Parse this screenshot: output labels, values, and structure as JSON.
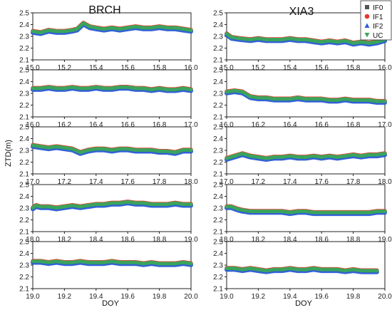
{
  "chart_data": {
    "type": "scatter",
    "ylabel": "ZTD(m)",
    "xlabel": "DOY",
    "column_titles": [
      "BRCH",
      "XIA3"
    ],
    "legend": {
      "placement": "top-right",
      "entries": [
        {
          "name": "IF0",
          "color": "#555555",
          "marker": "square"
        },
        {
          "name": "IF1",
          "color": "#e8372c",
          "marker": "circle"
        },
        {
          "name": "IF2",
          "color": "#2a5bd7",
          "marker": "triangle-up"
        },
        {
          "name": "UC",
          "color": "#3aa85a",
          "marker": "triangle-down"
        }
      ]
    },
    "ylim": [
      2.1,
      2.5
    ],
    "yticks": [
      "2.1",
      "2.2",
      "2.3",
      "2.4",
      "2.5"
    ],
    "grid": false,
    "panels": [
      {
        "station": "BRCH",
        "row": 0,
        "xlim": [
          15.0,
          16.0
        ],
        "xticks": [
          "15.0",
          "15.2",
          "15.4",
          "15.6",
          "15.8",
          "16.0"
        ],
        "x": [
          15.0,
          15.05,
          15.1,
          15.15,
          15.2,
          15.25,
          15.28,
          15.32,
          15.36,
          15.4,
          15.45,
          15.5,
          15.55,
          15.6,
          15.65,
          15.7,
          15.75,
          15.8,
          15.85,
          15.9,
          15.95,
          16.0
        ],
        "y": [
          2.34,
          2.33,
          2.35,
          2.34,
          2.34,
          2.35,
          2.36,
          2.41,
          2.38,
          2.37,
          2.36,
          2.37,
          2.36,
          2.37,
          2.38,
          2.37,
          2.37,
          2.38,
          2.37,
          2.37,
          2.36,
          2.35
        ]
      },
      {
        "station": "XIA3",
        "row": 0,
        "xlim": [
          15.0,
          16.0
        ],
        "xticks": [
          "15.0",
          "15.2",
          "15.4",
          "15.6",
          "15.8",
          "16.0"
        ],
        "x": [
          15.0,
          15.03,
          15.08,
          15.15,
          15.2,
          15.25,
          15.3,
          15.35,
          15.4,
          15.45,
          15.5,
          15.55,
          15.6,
          15.65,
          15.7,
          15.75,
          15.8,
          15.85,
          15.9,
          15.95,
          16.0
        ],
        "y": [
          2.32,
          2.29,
          2.28,
          2.27,
          2.28,
          2.27,
          2.27,
          2.27,
          2.28,
          2.27,
          2.27,
          2.26,
          2.25,
          2.26,
          2.25,
          2.26,
          2.24,
          2.25,
          2.24,
          2.25,
          2.27
        ]
      },
      {
        "station": "BRCH",
        "row": 1,
        "xlim": [
          16.0,
          17.0
        ],
        "xticks": [
          "16.0",
          "16.2",
          "16.4",
          "16.6",
          "16.8",
          "17.0"
        ],
        "x": [
          16.0,
          16.05,
          16.1,
          16.15,
          16.2,
          16.25,
          16.3,
          16.35,
          16.4,
          16.45,
          16.5,
          16.55,
          16.6,
          16.65,
          16.7,
          16.75,
          16.8,
          16.85,
          16.9,
          16.95,
          17.0
        ],
        "y": [
          2.34,
          2.34,
          2.35,
          2.34,
          2.34,
          2.35,
          2.34,
          2.34,
          2.35,
          2.34,
          2.34,
          2.35,
          2.35,
          2.34,
          2.34,
          2.33,
          2.34,
          2.33,
          2.33,
          2.34,
          2.33
        ]
      },
      {
        "station": "XIA3",
        "row": 1,
        "xlim": [
          16.0,
          17.0
        ],
        "xticks": [
          "16.0",
          "16.2",
          "16.4",
          "16.6",
          "16.8",
          "17.0"
        ],
        "x": [
          16.0,
          16.05,
          16.1,
          16.15,
          16.2,
          16.25,
          16.3,
          16.35,
          16.4,
          16.45,
          16.5,
          16.55,
          16.6,
          16.65,
          16.7,
          16.75,
          16.8,
          16.85,
          16.9,
          16.95,
          17.0
        ],
        "y": [
          2.31,
          2.32,
          2.31,
          2.27,
          2.26,
          2.26,
          2.25,
          2.25,
          2.25,
          2.26,
          2.25,
          2.25,
          2.25,
          2.24,
          2.24,
          2.25,
          2.24,
          2.24,
          2.24,
          2.23,
          2.23
        ]
      },
      {
        "station": "BRCH",
        "row": 2,
        "xlim": [
          17.0,
          18.0
        ],
        "xticks": [
          "17.0",
          "17.2",
          "17.4",
          "17.6",
          "17.8",
          "18.0"
        ],
        "x": [
          17.0,
          17.05,
          17.1,
          17.15,
          17.2,
          17.25,
          17.3,
          17.35,
          17.4,
          17.45,
          17.5,
          17.55,
          17.6,
          17.65,
          17.7,
          17.75,
          17.8,
          17.85,
          17.9,
          17.95,
          18.0
        ],
        "y": [
          2.34,
          2.33,
          2.32,
          2.33,
          2.32,
          2.31,
          2.28,
          2.3,
          2.31,
          2.31,
          2.3,
          2.31,
          2.31,
          2.3,
          2.3,
          2.3,
          2.29,
          2.29,
          2.28,
          2.3,
          2.3
        ]
      },
      {
        "station": "XIA3",
        "row": 2,
        "xlim": [
          17.0,
          18.0
        ],
        "xticks": [
          "17.0",
          "17.2",
          "17.4",
          "17.6",
          "17.8",
          "18.0"
        ],
        "x": [
          17.0,
          17.05,
          17.1,
          17.15,
          17.2,
          17.25,
          17.3,
          17.35,
          17.4,
          17.45,
          17.5,
          17.55,
          17.6,
          17.65,
          17.7,
          17.75,
          17.8,
          17.85,
          17.9,
          17.95,
          18.0
        ],
        "y": [
          2.23,
          2.25,
          2.27,
          2.25,
          2.24,
          2.23,
          2.24,
          2.24,
          2.25,
          2.24,
          2.24,
          2.25,
          2.24,
          2.25,
          2.24,
          2.25,
          2.26,
          2.25,
          2.26,
          2.26,
          2.27
        ]
      },
      {
        "station": "BRCH",
        "row": 3,
        "xlim": [
          18.0,
          19.0
        ],
        "xticks": [
          "18.0",
          "18.2",
          "18.4",
          "18.6",
          "18.8",
          "19.0"
        ],
        "x": [
          18.0,
          18.02,
          18.05,
          18.1,
          18.15,
          18.2,
          18.25,
          18.3,
          18.35,
          18.4,
          18.45,
          18.5,
          18.55,
          18.6,
          18.65,
          18.7,
          18.75,
          18.8,
          18.85,
          18.9,
          18.95,
          19.0
        ],
        "y": [
          2.3,
          2.32,
          2.31,
          2.31,
          2.3,
          2.31,
          2.32,
          2.31,
          2.32,
          2.33,
          2.33,
          2.34,
          2.34,
          2.35,
          2.34,
          2.34,
          2.33,
          2.33,
          2.33,
          2.34,
          2.33,
          2.33
        ]
      },
      {
        "station": "XIA3",
        "row": 3,
        "xlim": [
          18.0,
          19.0
        ],
        "xticks": [
          "18.0",
          "18.2",
          "18.4",
          "18.6",
          "18.8",
          "19.0"
        ],
        "x": [
          18.0,
          18.03,
          18.07,
          18.1,
          18.15,
          18.2,
          18.25,
          18.3,
          18.35,
          18.4,
          18.45,
          18.5,
          18.55,
          18.6,
          18.65,
          18.7,
          18.75,
          18.8,
          18.85,
          18.9,
          18.95,
          19.0
        ],
        "y": [
          2.31,
          2.31,
          2.29,
          2.28,
          2.27,
          2.27,
          2.27,
          2.27,
          2.27,
          2.26,
          2.27,
          2.27,
          2.26,
          2.26,
          2.26,
          2.26,
          2.26,
          2.26,
          2.26,
          2.26,
          2.27,
          2.27
        ]
      },
      {
        "station": "BRCH",
        "row": 4,
        "xlim": [
          19.0,
          20.0
        ],
        "xticks": [
          "19.0",
          "19.2",
          "19.4",
          "19.6",
          "19.8",
          "20.0"
        ],
        "x": [
          19.0,
          19.05,
          19.1,
          19.15,
          19.2,
          19.25,
          19.3,
          19.35,
          19.4,
          19.45,
          19.5,
          19.55,
          19.6,
          19.65,
          19.7,
          19.75,
          19.8,
          19.85,
          19.9,
          19.95,
          20.0
        ],
        "y": [
          2.33,
          2.33,
          2.32,
          2.33,
          2.32,
          2.32,
          2.33,
          2.32,
          2.32,
          2.32,
          2.33,
          2.32,
          2.32,
          2.32,
          2.31,
          2.32,
          2.31,
          2.31,
          2.31,
          2.32,
          2.31
        ]
      },
      {
        "station": "XIA3",
        "row": 4,
        "xlim": [
          19.0,
          20.0
        ],
        "xticks": [
          "19.0",
          "19.2",
          "19.4",
          "19.6",
          "19.8",
          "20.0"
        ],
        "x": [
          19.0,
          19.05,
          19.1,
          19.15,
          19.2,
          19.25,
          19.3,
          19.35,
          19.4,
          19.45,
          19.5,
          19.55,
          19.6,
          19.65,
          19.7,
          19.75,
          19.8,
          19.85,
          19.9,
          19.95
        ],
        "y": [
          2.27,
          2.27,
          2.26,
          2.27,
          2.26,
          2.25,
          2.26,
          2.26,
          2.27,
          2.26,
          2.26,
          2.27,
          2.26,
          2.26,
          2.26,
          2.25,
          2.26,
          2.25,
          2.25,
          2.25
        ]
      }
    ]
  }
}
